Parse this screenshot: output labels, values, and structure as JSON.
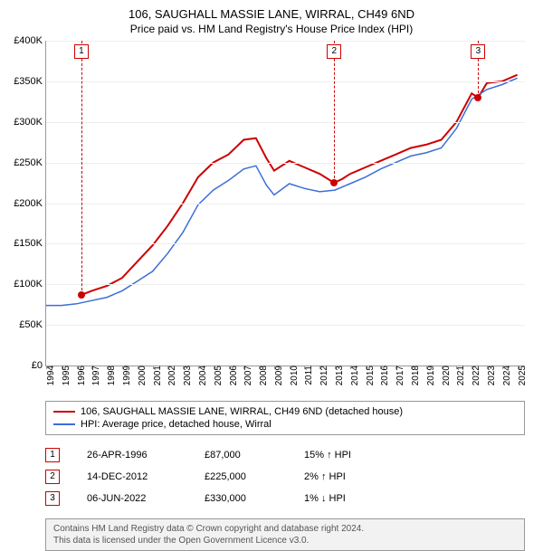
{
  "title": "106, SAUGHALL MASSIE LANE, WIRRAL, CH49 6ND",
  "subtitle": "Price paid vs. HM Land Registry's House Price Index (HPI)",
  "chart": {
    "type": "line",
    "background_color": "#ffffff",
    "grid_color": "#eeeeee",
    "axis_color": "#999999",
    "ylim": [
      0,
      400000
    ],
    "ytick_step": 50000,
    "yticks": [
      "£0",
      "£50K",
      "£100K",
      "£150K",
      "£200K",
      "£250K",
      "£300K",
      "£350K",
      "£400K"
    ],
    "xlim": [
      1994,
      2025.5
    ],
    "xticks": [
      1994,
      1995,
      1996,
      1997,
      1998,
      1999,
      2000,
      2001,
      2002,
      2003,
      2004,
      2005,
      2006,
      2007,
      2008,
      2009,
      2010,
      2011,
      2012,
      2013,
      2014,
      2015,
      2016,
      2017,
      2018,
      2019,
      2020,
      2021,
      2022,
      2023,
      2024,
      2025
    ],
    "series": [
      {
        "name": "106, SAUGHALL MASSIE LANE, WIRRAL, CH49 6ND (detached house)",
        "color": "#cc0000",
        "line_width": 2,
        "points": [
          [
            1996.32,
            87000
          ],
          [
            1997,
            92000
          ],
          [
            1998,
            98000
          ],
          [
            1999,
            108000
          ],
          [
            2000,
            128000
          ],
          [
            2001,
            148000
          ],
          [
            2002,
            172000
          ],
          [
            2003,
            200000
          ],
          [
            2004,
            232000
          ],
          [
            2005,
            250000
          ],
          [
            2006,
            260000
          ],
          [
            2007,
            278000
          ],
          [
            2007.8,
            280000
          ],
          [
            2008.5,
            255000
          ],
          [
            2009,
            240000
          ],
          [
            2010,
            252000
          ],
          [
            2011,
            244000
          ],
          [
            2012,
            236000
          ],
          [
            2012.95,
            225000
          ],
          [
            2013.5,
            230000
          ],
          [
            2014,
            236000
          ],
          [
            2015,
            244000
          ],
          [
            2016,
            252000
          ],
          [
            2017,
            260000
          ],
          [
            2018,
            268000
          ],
          [
            2019,
            272000
          ],
          [
            2020,
            278000
          ],
          [
            2021,
            300000
          ],
          [
            2022,
            335000
          ],
          [
            2022.43,
            330000
          ],
          [
            2023,
            348000
          ],
          [
            2024,
            350000
          ],
          [
            2025,
            358000
          ]
        ]
      },
      {
        "name": "HPI: Average price, detached house, Wirral",
        "color": "#3b6fd6",
        "line_width": 1.5,
        "points": [
          [
            1994,
            74000
          ],
          [
            1995,
            74000
          ],
          [
            1996,
            76000
          ],
          [
            1997,
            80000
          ],
          [
            1998,
            84000
          ],
          [
            1999,
            92000
          ],
          [
            2000,
            104000
          ],
          [
            2001,
            116000
          ],
          [
            2002,
            138000
          ],
          [
            2003,
            164000
          ],
          [
            2004,
            198000
          ],
          [
            2005,
            216000
          ],
          [
            2006,
            228000
          ],
          [
            2007,
            242000
          ],
          [
            2007.8,
            246000
          ],
          [
            2008.5,
            222000
          ],
          [
            2009,
            210000
          ],
          [
            2010,
            224000
          ],
          [
            2011,
            218000
          ],
          [
            2012,
            214000
          ],
          [
            2013,
            216000
          ],
          [
            2014,
            224000
          ],
          [
            2015,
            232000
          ],
          [
            2016,
            242000
          ],
          [
            2017,
            250000
          ],
          [
            2018,
            258000
          ],
          [
            2019,
            262000
          ],
          [
            2020,
            268000
          ],
          [
            2021,
            292000
          ],
          [
            2022,
            328000
          ],
          [
            2023,
            340000
          ],
          [
            2024,
            346000
          ],
          [
            2025,
            354000
          ]
        ]
      }
    ],
    "markers": [
      {
        "n": "1",
        "x": 1996.32,
        "y": 87000,
        "color": "#cc0000"
      },
      {
        "n": "2",
        "x": 2012.95,
        "y": 225000,
        "color": "#cc0000"
      },
      {
        "n": "3",
        "x": 2022.43,
        "y": 330000,
        "color": "#cc0000"
      }
    ]
  },
  "legend": {
    "items": [
      {
        "color": "#cc0000",
        "label": "106, SAUGHALL MASSIE LANE, WIRRAL, CH49 6ND (detached house)"
      },
      {
        "color": "#3b6fd6",
        "label": "HPI: Average price, detached house, Wirral"
      }
    ]
  },
  "sales": [
    {
      "n": "1",
      "color": "#cc0000",
      "date": "26-APR-1996",
      "price": "£87,000",
      "pct": "15% ↑ HPI"
    },
    {
      "n": "2",
      "color": "#cc0000",
      "date": "14-DEC-2012",
      "price": "£225,000",
      "pct": "2% ↑ HPI"
    },
    {
      "n": "3",
      "color": "#cc0000",
      "date": "06-JUN-2022",
      "price": "£330,000",
      "pct": "1% ↓ HPI"
    }
  ],
  "footer": {
    "line1": "Contains HM Land Registry data © Crown copyright and database right 2024.",
    "line2": "This data is licensed under the Open Government Licence v3.0."
  }
}
